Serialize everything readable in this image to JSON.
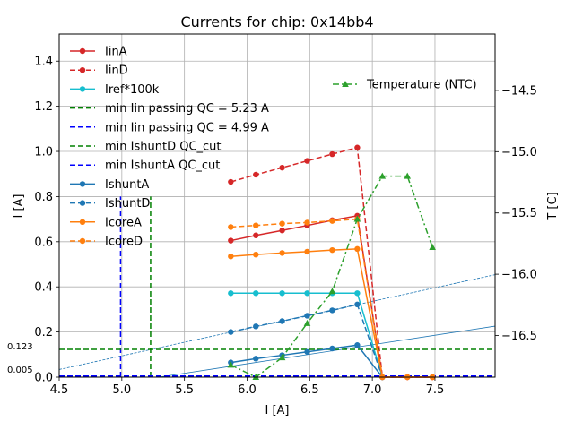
{
  "chart_data": {
    "type": "line",
    "title": "Currents for chip: 0x14bb4",
    "xlabel": "I [A]",
    "ylabel": "I [A]",
    "y2label": "T [C]",
    "xlim": [
      4.5,
      7.98
    ],
    "ylim": [
      0,
      1.52
    ],
    "y2lim": [
      -16.84,
      -14.04
    ],
    "grid": true,
    "xticks": [
      "4.5",
      "5.0",
      "5.5",
      "6.0",
      "6.5",
      "7.0",
      "7.5"
    ],
    "xtick_values": [
      4.5,
      5.0,
      5.5,
      6.0,
      6.5,
      7.0,
      7.5
    ],
    "yticks": [
      "0.0",
      "0.2",
      "0.4",
      "0.6",
      "0.8",
      "1.0",
      "1.2",
      "1.4"
    ],
    "ytick_values": [
      0.0,
      0.2,
      0.4,
      0.6,
      0.8,
      1.0,
      1.2,
      1.4
    ],
    "y2ticks": [
      "−16.5",
      "−16.0",
      "−15.5",
      "−15.0",
      "−14.5"
    ],
    "y2tick_values": [
      -16.5,
      -16.0,
      -15.5,
      -15.0,
      -14.5
    ],
    "annotations": [
      {
        "text": "0.123",
        "y": 0.123
      },
      {
        "text": "0.005",
        "y": 0.005
      }
    ],
    "series": [
      {
        "name": "IinA",
        "color": "#d62728",
        "dash": "solid",
        "marker": "circle",
        "axis": "left",
        "x": [
          5.87,
          6.07,
          6.28,
          6.48,
          6.68,
          6.88,
          7.08,
          7.28,
          7.48
        ],
        "y": [
          0.605,
          0.628,
          0.65,
          0.672,
          0.695,
          0.715,
          0.0,
          0.0,
          0.0
        ]
      },
      {
        "name": "IinD",
        "color": "#d62728",
        "dash": "dashed",
        "marker": "circle",
        "axis": "left",
        "x": [
          5.87,
          6.07,
          6.28,
          6.48,
          6.68,
          6.88,
          7.08,
          7.28,
          7.48
        ],
        "y": [
          0.865,
          0.897,
          0.928,
          0.958,
          0.988,
          1.017,
          0.0,
          0.0,
          0.0
        ]
      },
      {
        "name": "Iref*100k",
        "color": "#17becf",
        "dash": "solid",
        "marker": "circle",
        "axis": "left",
        "x": [
          5.87,
          6.07,
          6.28,
          6.48,
          6.68,
          6.88,
          7.08
        ],
        "y": [
          0.372,
          0.372,
          0.372,
          0.372,
          0.372,
          0.372,
          0.0
        ]
      },
      {
        "name": "min Iin passing QC = 5.23 A",
        "color": "#008000",
        "dash": "dashed",
        "marker": "none",
        "axis": "left",
        "x": [
          4.5,
          5.23,
          5.23,
          5.23,
          5.23,
          5.23
        ],
        "y": [
          0.0,
          0.0,
          0.0,
          0.8,
          0.8,
          0.8
        ],
        "vline_x": 5.23,
        "vline_top": 0.8
      },
      {
        "name": "min Iin passing QC = 4.99 A",
        "color": "#0000ff",
        "dash": "dashed",
        "marker": "none",
        "axis": "left",
        "x": [
          4.5,
          4.99,
          4.99,
          4.99,
          4.99,
          4.99
        ],
        "y": [
          0.0,
          0.0,
          0.0,
          0.8,
          0.8,
          0.8
        ],
        "vline_x": 4.99,
        "vline_top": 0.8
      },
      {
        "name": "min IshuntD QC_cut",
        "color": "#008000",
        "dash": "dashed",
        "marker": "none",
        "axis": "left",
        "hline_y": 0.123
      },
      {
        "name": "min IshuntA QC_cut",
        "color": "#0000ff",
        "dash": "dashed",
        "marker": "none",
        "axis": "left",
        "hline_y": 0.005
      },
      {
        "name": "IshuntA",
        "color": "#1f77b4",
        "dash": "solid",
        "marker": "circle",
        "axis": "left",
        "x": [
          5.87,
          6.07,
          6.28,
          6.48,
          6.68,
          6.88,
          7.08
        ],
        "y": [
          0.065,
          0.082,
          0.097,
          0.112,
          0.127,
          0.142,
          0.0
        ]
      },
      {
        "name": "IshuntD",
        "color": "#1f77b4",
        "dash": "dashed",
        "marker": "circle",
        "axis": "left",
        "x": [
          5.87,
          6.07,
          6.28,
          6.48,
          6.68,
          6.88,
          7.08
        ],
        "y": [
          0.2,
          0.225,
          0.248,
          0.272,
          0.296,
          0.322,
          0.0
        ]
      },
      {
        "name": "IcoreA",
        "color": "#ff7f0e",
        "dash": "solid",
        "marker": "circle",
        "axis": "left",
        "x": [
          5.87,
          6.07,
          6.28,
          6.48,
          6.68,
          6.88,
          7.08,
          7.28,
          7.48
        ],
        "y": [
          0.535,
          0.543,
          0.55,
          0.556,
          0.563,
          0.568,
          0.0,
          0.0,
          0.0
        ]
      },
      {
        "name": "IcoreD",
        "color": "#ff7f0e",
        "dash": "dashed",
        "marker": "circle",
        "axis": "left",
        "x": [
          5.87,
          6.07,
          6.28,
          6.48,
          6.68,
          6.88,
          7.08,
          7.28,
          7.48
        ],
        "y": [
          0.665,
          0.672,
          0.68,
          0.685,
          0.692,
          0.7,
          0.0,
          0.0,
          0.0
        ]
      },
      {
        "name": "Temperature (NTC)",
        "color": "#2ca02c",
        "dash": "dashdot",
        "marker": "triangle",
        "axis": "right",
        "x": [
          5.87,
          6.07,
          6.28,
          6.48,
          6.68,
          6.88,
          7.08,
          7.28,
          7.48
        ],
        "y": [
          -16.74,
          -16.84,
          -16.68,
          -16.4,
          -16.14,
          -15.55,
          -15.2,
          -15.2,
          -15.78
        ]
      }
    ],
    "fit_lines": [
      {
        "name": "IshuntD fit",
        "color": "#1f77b4",
        "dash": "dashed",
        "x": [
          4.5,
          7.98
        ],
        "y": [
          0.034,
          0.454
        ]
      },
      {
        "name": "IshuntA fit",
        "color": "#1f77b4",
        "dash": "solid",
        "x": [
          4.5,
          7.98
        ],
        "y": [
          -0.067,
          0.226
        ]
      }
    ],
    "legend": "upper-left",
    "legend2": "upper-right"
  }
}
